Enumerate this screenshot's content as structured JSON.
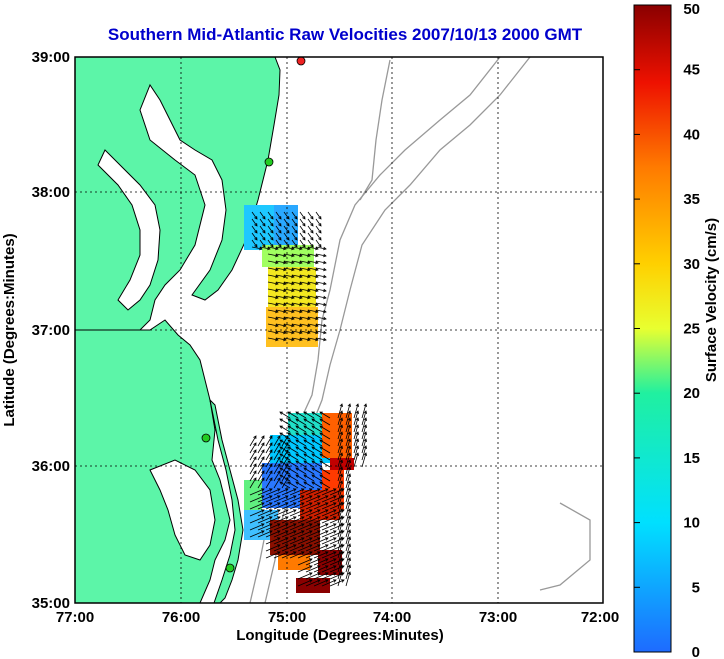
{
  "title": "Southern Mid-Atlantic Raw Velocities 2007/10/13 2000 GMT",
  "x_axis": {
    "label": "Longitude (Degrees:Minutes)",
    "ticks": [
      "77:00",
      "76:00",
      "75:00",
      "74:00",
      "73:00",
      "72:00"
    ]
  },
  "y_axis": {
    "label": "Latitude (Degrees:Minutes)",
    "ticks": [
      "39:00",
      "38:00",
      "37:00",
      "36:00",
      "35:00"
    ]
  },
  "colorbar": {
    "label": "Surface Velocity (cm/s)",
    "min": 0,
    "max": 50,
    "ticks": [
      "50",
      "45",
      "40",
      "35",
      "30",
      "25",
      "20",
      "15",
      "10",
      "5",
      "0"
    ]
  },
  "colors": {
    "land": "#5cf5a8",
    "water": "#ffffff",
    "coast": "#000000",
    "bathymetry": "#999999",
    "title": "#0000cc",
    "station_green": "#22cc22",
    "station_red": "#ee2222"
  },
  "chart_data": {
    "type": "heatmap",
    "xlim": [
      -77,
      -72
    ],
    "ylim": [
      35,
      39
    ],
    "grid": true,
    "stations": [
      {
        "lon": -74.85,
        "lat": 38.97,
        "color": "red"
      },
      {
        "lon": -75.15,
        "lat": 38.22,
        "color": "green"
      },
      {
        "lon": -75.68,
        "lat": 36.18,
        "color": "green"
      },
      {
        "lon": -75.53,
        "lat": 35.25,
        "color": "green"
      }
    ],
    "regions": [
      {
        "name": "north",
        "lon_range": [
          -75.4,
          -74.65
        ],
        "lat_range": [
          36.85,
          37.85
        ]
      },
      {
        "name": "south",
        "lon_range": [
          -75.4,
          -74.25
        ],
        "lat_range": [
          35.08,
          36.55
        ]
      }
    ]
  }
}
